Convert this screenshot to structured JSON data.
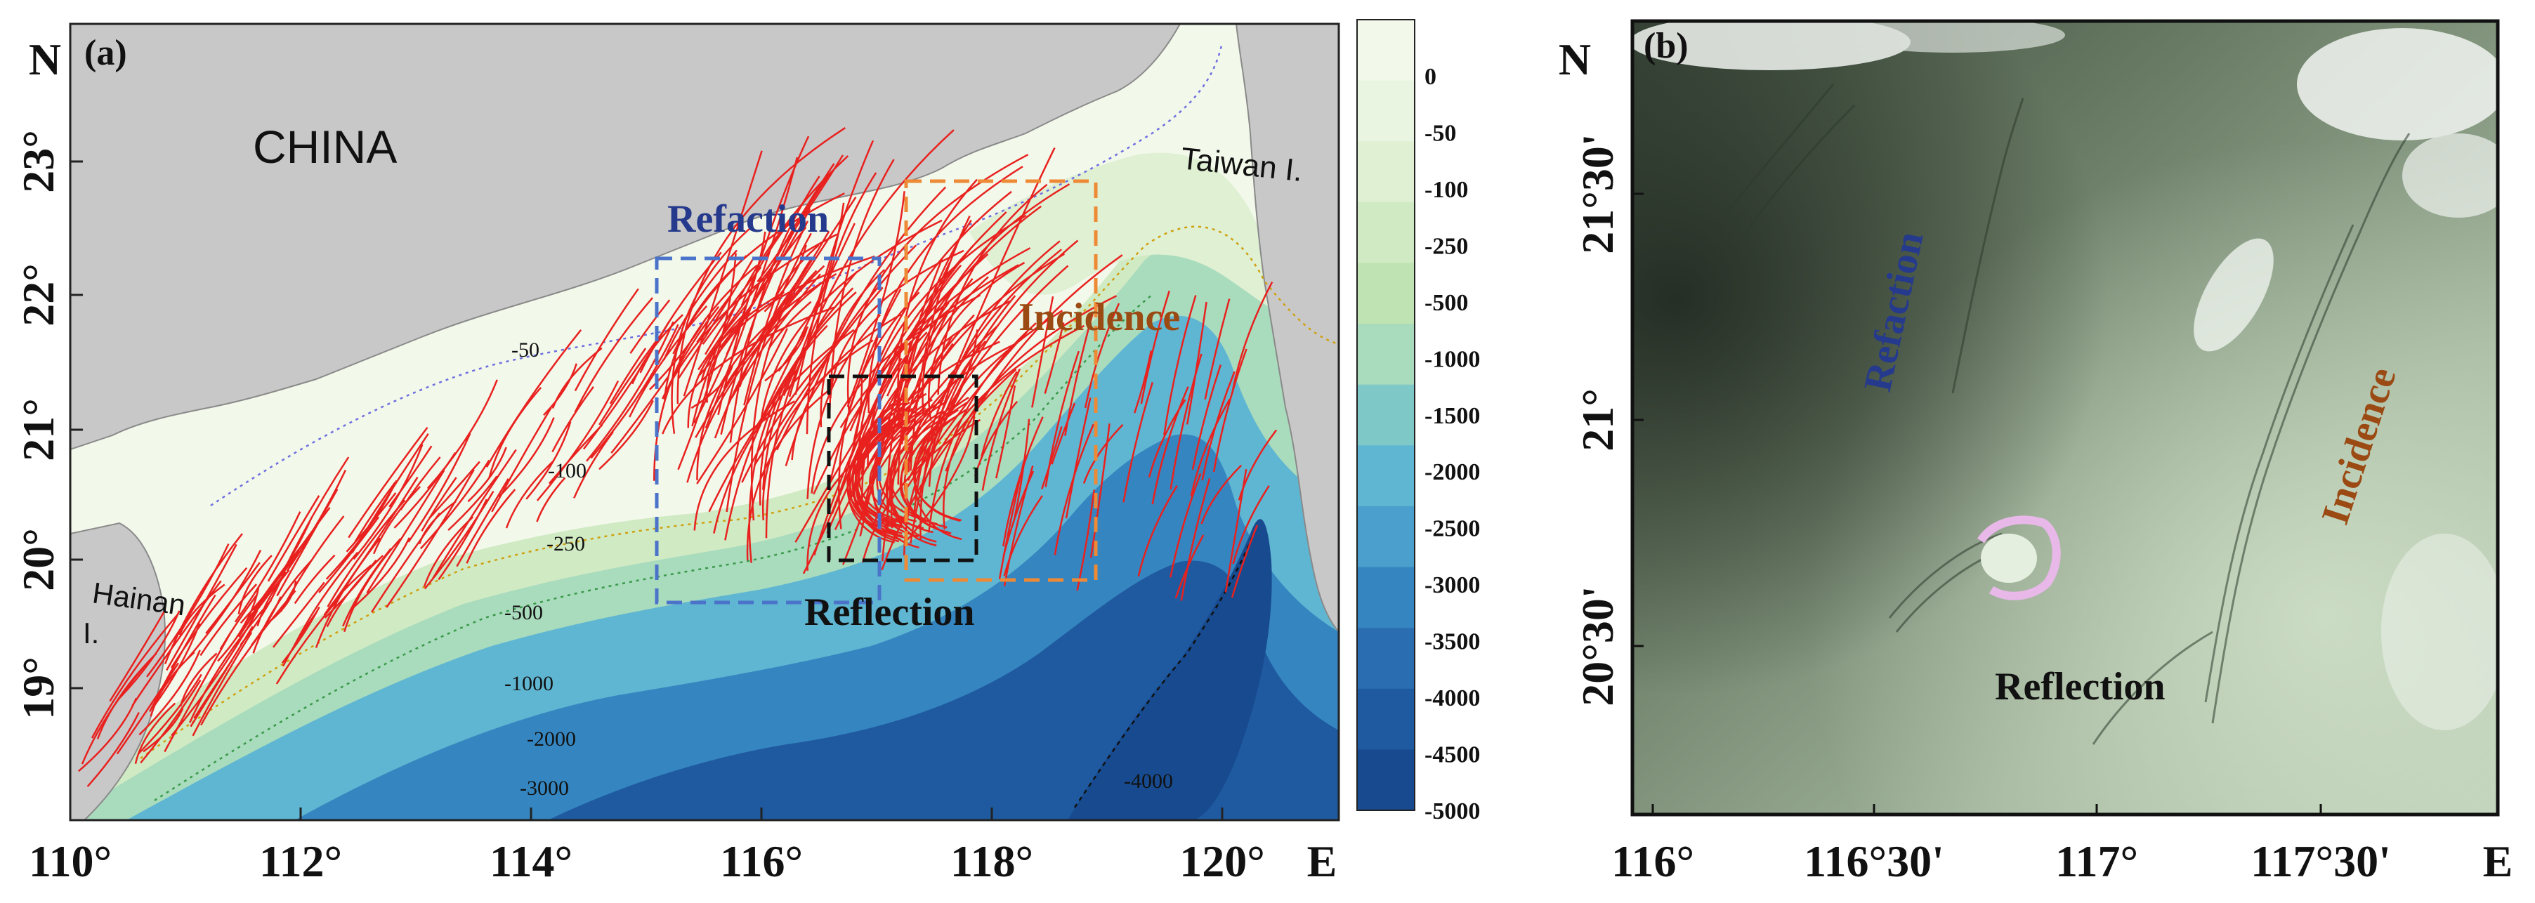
{
  "panel_a": {
    "label": "(a)",
    "north_symbol": "N",
    "east_symbol": "E",
    "x_ticks": [
      "110°",
      "112°",
      "114°",
      "116°",
      "118°",
      "120°"
    ],
    "y_ticks": [
      "19°",
      "20°",
      "21°",
      "22°",
      "23°"
    ],
    "land_labels": {
      "china": "CHINA",
      "taiwan": "Taiwan I.",
      "hainan_line1": "Hainan",
      "hainan_line2": "I."
    },
    "box_labels": {
      "refraction": "Refaction",
      "incidence": "Incidence",
      "reflection": "Reflection"
    },
    "box_colors": {
      "refraction": "#4a73c9",
      "incidence": "#ee8a35",
      "reflection": "#111111"
    },
    "depth_contour_labels": [
      "-50",
      "-100",
      "-250",
      "-500",
      "-1000",
      "-2000",
      "-3000",
      "-4000"
    ],
    "colorbar": {
      "levels": [
        "0",
        "-50",
        "-100",
        "-250",
        "-500",
        "-1000",
        "-1500",
        "-2000",
        "-2500",
        "-3000",
        "-3500",
        "-4000",
        "-4500",
        "-5000"
      ],
      "colors": [
        "#f2f8ea",
        "#eaf5e1",
        "#dff0d3",
        "#d0eac3",
        "#bfe3b3",
        "#a9dbbd",
        "#7fc8c8",
        "#5fb6d2",
        "#4a9fcc",
        "#3586c0",
        "#2a6eb1",
        "#1f5aa0",
        "#174a8e"
      ]
    },
    "wave_color": "#e8211f"
  },
  "panel_b": {
    "label": "(b)",
    "north_symbol": "N",
    "east_symbol": "E",
    "x_ticks": [
      "116°",
      "116°30'",
      "117°",
      "117°30'"
    ],
    "y_ticks": [
      "20°30'",
      "21°",
      "21°30'"
    ],
    "labels": {
      "refraction": "Refaction",
      "incidence": "Incidence",
      "reflection": "Reflection"
    },
    "label_colors": {
      "refraction": "#253a8c",
      "incidence": "#9a4a12",
      "reflection": "#111111"
    }
  }
}
